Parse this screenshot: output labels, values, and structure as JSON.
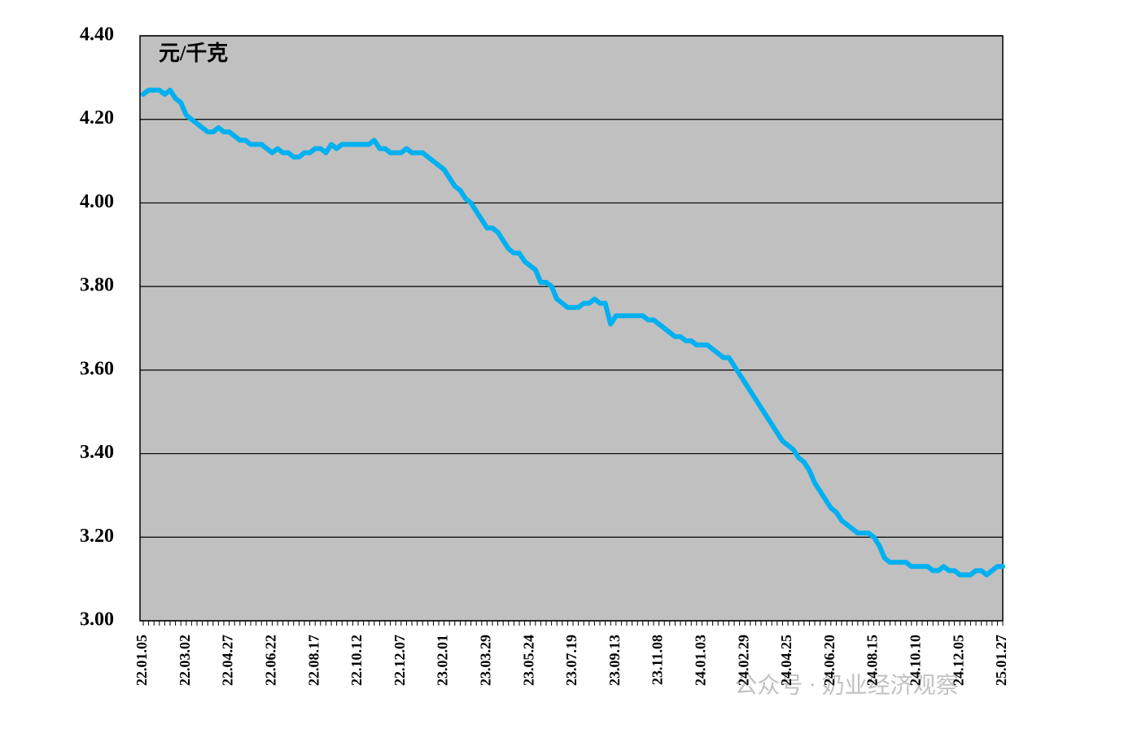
{
  "chart_data": {
    "type": "line",
    "y_unit_label": "元/千克",
    "watermark": "公众号 · 奶业经济观察",
    "categories": [
      "22.01.05",
      null,
      null,
      null,
      null,
      null,
      null,
      null,
      "22.03.02",
      null,
      null,
      null,
      null,
      null,
      null,
      null,
      "22.04.27",
      null,
      null,
      null,
      null,
      null,
      null,
      null,
      "22.06.22",
      null,
      null,
      null,
      null,
      null,
      null,
      null,
      "22.08.17",
      null,
      null,
      null,
      null,
      null,
      null,
      null,
      "22.10.12",
      null,
      null,
      null,
      null,
      null,
      null,
      null,
      "22.12.07",
      null,
      null,
      null,
      null,
      null,
      null,
      null,
      "23.02.01",
      null,
      null,
      null,
      null,
      null,
      null,
      null,
      "23.03.29",
      null,
      null,
      null,
      null,
      null,
      null,
      null,
      "23.05.24",
      null,
      null,
      null,
      null,
      null,
      null,
      null,
      "23.07.19",
      null,
      null,
      null,
      null,
      null,
      null,
      null,
      "23.09.13",
      null,
      null,
      null,
      null,
      null,
      null,
      null,
      "23.11.08",
      null,
      null,
      null,
      null,
      null,
      null,
      null,
      "24.01.03",
      null,
      null,
      null,
      null,
      null,
      null,
      null,
      "24.02.29",
      null,
      null,
      null,
      null,
      null,
      null,
      null,
      "24.04.25",
      null,
      null,
      null,
      null,
      null,
      null,
      null,
      "24.06.20",
      null,
      null,
      null,
      null,
      null,
      null,
      null,
      "24.08.15",
      null,
      null,
      null,
      null,
      null,
      null,
      null,
      "24.10.10",
      null,
      null,
      null,
      null,
      null,
      null,
      null,
      "24.12.05",
      null,
      null,
      null,
      null,
      null,
      null,
      null,
      "25.01.27"
    ],
    "series": [
      {
        "color": "#00b0f0",
        "values": [
          4.26,
          4.27,
          4.27,
          4.27,
          4.26,
          4.27,
          4.25,
          4.24,
          4.21,
          4.2,
          4.19,
          4.18,
          4.17,
          4.17,
          4.18,
          4.17,
          4.17,
          4.16,
          4.15,
          4.15,
          4.14,
          4.14,
          4.14,
          4.13,
          4.12,
          4.13,
          4.12,
          4.12,
          4.11,
          4.11,
          4.12,
          4.12,
          4.13,
          4.13,
          4.12,
          4.14,
          4.13,
          4.14,
          4.14,
          4.14,
          4.14,
          4.14,
          4.14,
          4.15,
          4.13,
          4.13,
          4.12,
          4.12,
          4.12,
          4.13,
          4.12,
          4.12,
          4.12,
          4.11,
          4.1,
          4.09,
          4.08,
          4.06,
          4.04,
          4.03,
          4.01,
          4.0,
          3.98,
          3.96,
          3.94,
          3.94,
          3.93,
          3.91,
          3.89,
          3.88,
          3.88,
          3.86,
          3.85,
          3.84,
          3.81,
          3.81,
          3.8,
          3.77,
          3.76,
          3.75,
          3.75,
          3.75,
          3.76,
          3.76,
          3.77,
          3.76,
          3.76,
          3.71,
          3.73,
          3.73,
          3.73,
          3.73,
          3.73,
          3.73,
          3.72,
          3.72,
          3.71,
          3.7,
          3.69,
          3.68,
          3.68,
          3.67,
          3.67,
          3.66,
          3.66,
          3.66,
          3.65,
          3.64,
          3.63,
          3.63,
          3.61,
          3.59,
          3.57,
          3.55,
          3.53,
          3.51,
          3.49,
          3.47,
          3.45,
          3.43,
          3.42,
          3.41,
          3.39,
          3.38,
          3.36,
          3.33,
          3.31,
          3.29,
          3.27,
          3.26,
          3.24,
          3.23,
          3.22,
          3.21,
          3.21,
          3.21,
          3.2,
          3.18,
          3.15,
          3.14,
          3.14,
          3.14,
          3.14,
          3.13,
          3.13,
          3.13,
          3.13,
          3.12,
          3.12,
          3.13,
          3.12,
          3.12,
          3.11,
          3.11,
          3.11,
          3.12,
          3.12,
          3.11,
          3.12,
          3.13,
          3.13
        ]
      }
    ],
    "ylim": [
      3.0,
      4.4
    ],
    "yticks": [
      {
        "value": 3.0,
        "label": "3.00"
      },
      {
        "value": 3.2,
        "label": "3.20"
      },
      {
        "value": 3.4,
        "label": "3.40"
      },
      {
        "value": 3.6,
        "label": "3.60"
      },
      {
        "value": 3.8,
        "label": "3.80"
      },
      {
        "value": 4.0,
        "label": "4.00"
      },
      {
        "value": 4.2,
        "label": "4.20"
      },
      {
        "value": 4.4,
        "label": "4.40"
      }
    ],
    "grid": true,
    "plot_background": "#c0c0c0"
  }
}
